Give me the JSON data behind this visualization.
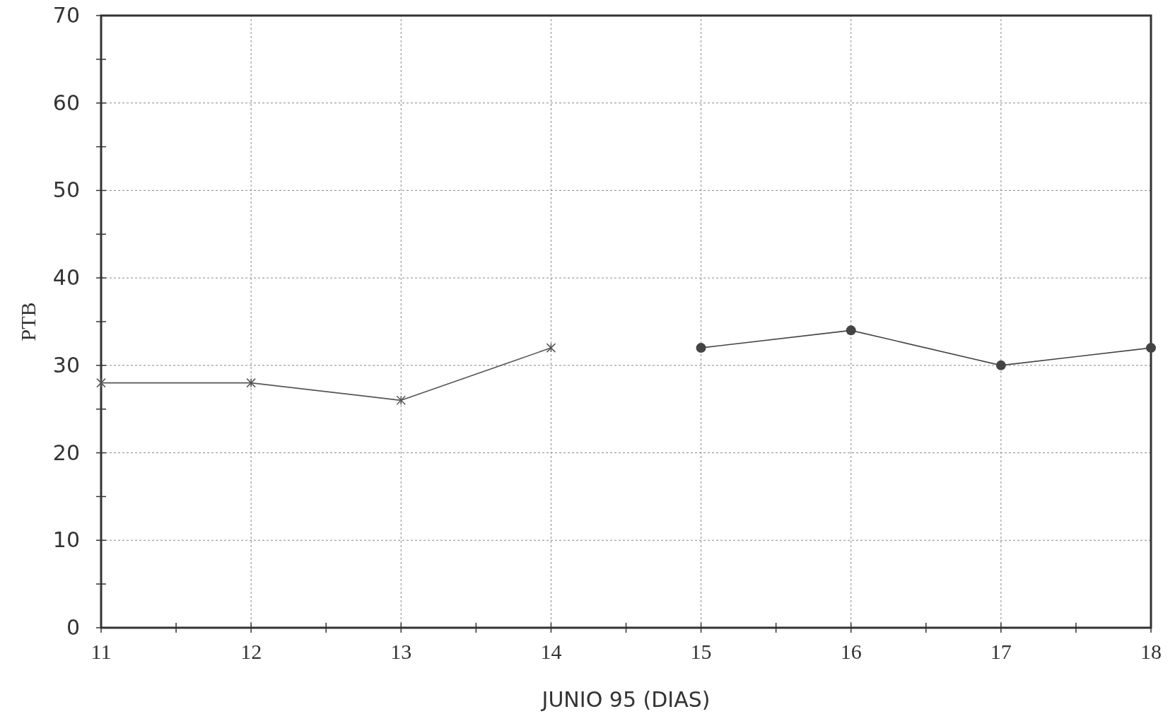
{
  "chart_data": {
    "type": "line",
    "xlabel": "JUNIO 95  (DIAS)",
    "ylabel": "PTB",
    "series": [
      {
        "color": "#555555",
        "marker": "cross",
        "x": [
          11,
          12,
          13,
          14
        ],
        "values": [
          28,
          28,
          26,
          32
        ]
      },
      {
        "color": "#444444",
        "marker": "circle",
        "x": [
          15,
          16,
          17,
          18
        ],
        "values": [
          32,
          34,
          30,
          32
        ]
      }
    ],
    "xlim": [
      11,
      18
    ],
    "ylim": [
      0,
      70
    ],
    "xticks": [
      11,
      {
        "value": 11.5,
        "label": null
      },
      12,
      {
        "value": 12.5,
        "label": null
      },
      13,
      {
        "value": 13.5,
        "label": null
      },
      14,
      {
        "value": 14.5,
        "label": null
      },
      15,
      {
        "value": 15.5,
        "label": null
      },
      16,
      {
        "value": 16.5,
        "label": null
      },
      17,
      {
        "value": 17.5,
        "label": null
      },
      18
    ],
    "yticks": [
      0,
      {
        "value": 5,
        "label": null
      },
      10,
      {
        "value": 15,
        "label": null
      },
      20,
      {
        "value": 25,
        "label": null
      },
      30,
      {
        "value": 35,
        "label": null
      },
      40,
      {
        "value": 45,
        "label": null
      },
      50,
      {
        "value": 55,
        "label": null
      },
      60,
      {
        "value": 65,
        "label": null
      },
      70
    ],
    "grid": true,
    "line_style": "solid"
  }
}
